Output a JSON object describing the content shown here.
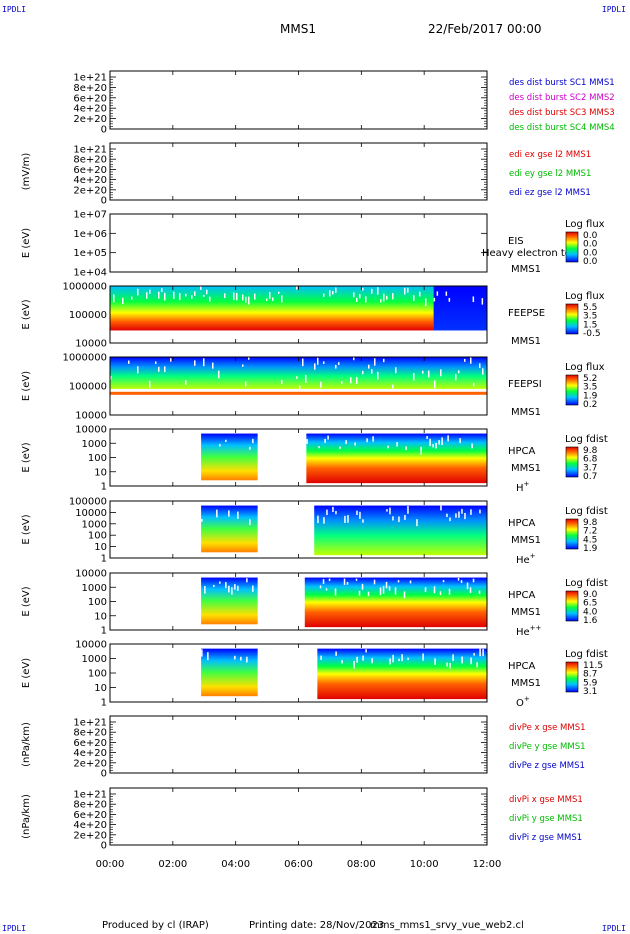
{
  "header": {
    "corner_tl": "IPDLI",
    "corner_tr": "IPDLI",
    "corner_bl": "IPDLI",
    "corner_br": "IPDLI",
    "mission": "MMS1",
    "date": "22/Feb/2017 00:00"
  },
  "footer": {
    "produced": "Produced by cl (IRAP)",
    "printed": "Printing date: 28/Nov/2023",
    "script": "mms_mms1_srvy_vue_web2.cl"
  },
  "colors": {
    "blue": "#0000cc",
    "magenta": "#cc00cc",
    "red": "#dd0000",
    "green": "#00bb00"
  },
  "chart_data": {
    "type": "heatmap",
    "time_axis": {
      "ticks": [
        "00:00",
        "02:00",
        "04:00",
        "06:00",
        "08:00",
        "10:00",
        "12:00"
      ],
      "range_hours": [
        0,
        12
      ]
    },
    "panels": [
      {
        "kind": "line",
        "ylabel": "",
        "yticks": [
          "1e+21",
          "8e+20",
          "6e+20",
          "4e+20",
          "2e+20",
          "0"
        ],
        "legend": [
          {
            "text": "des dist burst SC1 MMS1",
            "color": "#0000cc"
          },
          {
            "text": "des dist burst SC2 MMS2",
            "color": "#cc00cc"
          },
          {
            "text": "des dist burst SC3 MMS3",
            "color": "#dd0000"
          },
          {
            "text": "des dist burst SC4 MMS4",
            "color": "#00bb00"
          }
        ]
      },
      {
        "kind": "line",
        "ylabel": "(mV/m)",
        "yticks": [
          "1e+21",
          "8e+20",
          "6e+20",
          "4e+20",
          "2e+20",
          "0"
        ],
        "legend": [
          {
            "text": "edi ex gse l2 MMS1",
            "color": "#dd0000"
          },
          {
            "text": "edi ey gse l2 MMS1",
            "color": "#00bb00"
          },
          {
            "text": "edi ez gse l2 MMS1",
            "color": "#0000cc"
          }
        ]
      },
      {
        "kind": "spec",
        "ylabel": "E (eV)",
        "yticks": [
          "1e+07",
          "1e+06",
          "1e+05",
          "1e+04"
        ],
        "instrument": [
          "EIS",
          "MMS1"
        ],
        "overlay": "Heavy electron to",
        "cbar_title": "Log flux",
        "cbar_ticks": [
          "0.0",
          "0.0",
          "0.0",
          "0.0"
        ],
        "coverage": []
      },
      {
        "kind": "spec",
        "ylabel": "E (eV)",
        "yticks": [
          "1000000",
          "100000",
          "10000"
        ],
        "instrument": [
          "FEEPSE",
          "MMS1"
        ],
        "cbar_title": "Log flux",
        "cbar_ticks": [
          "5.5",
          "3.5",
          "1.5",
          "-0.5"
        ],
        "coverage": [
          [
            0,
            10.3
          ],
          [
            10.3,
            12
          ]
        ]
      },
      {
        "kind": "spec",
        "ylabel": "E (eV)",
        "yticks": [
          "1000000",
          "100000",
          "10000"
        ],
        "instrument": [
          "FEEPSI",
          "MMS1"
        ],
        "cbar_title": "Log flux",
        "cbar_ticks": [
          "5.2",
          "3.5",
          "1.9",
          "0.2"
        ],
        "coverage": [
          [
            0,
            12
          ]
        ]
      },
      {
        "kind": "spec",
        "ylabel": "E (eV)",
        "yticks": [
          "10000",
          "1000",
          "100",
          "10",
          "1"
        ],
        "instrument": [
          "HPCA",
          "MMS1"
        ],
        "species": "H",
        "species_sup": "+",
        "cbar_title": "Log fdist",
        "cbar_ticks": [
          "9.8",
          "6.8",
          "3.7",
          "0.7"
        ],
        "coverage": [
          [
            2.9,
            4.7
          ],
          [
            6.25,
            12
          ]
        ]
      },
      {
        "kind": "spec",
        "ylabel": "E (eV)",
        "yticks": [
          "100000",
          "10000",
          "1000",
          "100",
          "10",
          "1"
        ],
        "instrument": [
          "HPCA",
          "MMS1"
        ],
        "species": "He",
        "species_sup": "+",
        "cbar_title": "Log fdist",
        "cbar_ticks": [
          "9.8",
          "7.2",
          "4.5",
          "1.9"
        ],
        "coverage": [
          [
            2.9,
            4.7
          ],
          [
            6.5,
            12
          ]
        ]
      },
      {
        "kind": "spec",
        "ylabel": "E (eV)",
        "yticks": [
          "10000",
          "1000",
          "100",
          "10",
          "1"
        ],
        "instrument": [
          "HPCA",
          "MMS1"
        ],
        "species": "He",
        "species_sup": "++",
        "cbar_title": "Log fdist",
        "cbar_ticks": [
          "9.0",
          "6.5",
          "4.0",
          "1.6"
        ],
        "coverage": [
          [
            2.9,
            4.7
          ],
          [
            6.2,
            12
          ]
        ]
      },
      {
        "kind": "spec",
        "ylabel": "E (eV)",
        "yticks": [
          "10000",
          "1000",
          "100",
          "10",
          "1"
        ],
        "instrument": [
          "HPCA",
          "MMS1"
        ],
        "species": "O",
        "species_sup": "+",
        "cbar_title": "Log fdist",
        "cbar_ticks": [
          "11.5",
          "8.7",
          "5.9",
          "3.1"
        ],
        "coverage": [
          [
            2.9,
            4.7
          ],
          [
            6.6,
            12
          ]
        ]
      },
      {
        "kind": "line",
        "ylabel": "(nPa/km)",
        "yticks": [
          "1e+21",
          "8e+20",
          "6e+20",
          "4e+20",
          "2e+20",
          "0"
        ],
        "legend": [
          {
            "text": "divPe x gse MMS1",
            "color": "#dd0000"
          },
          {
            "text": "divPe y gse MMS1",
            "color": "#00bb00"
          },
          {
            "text": "divPe z gse MMS1",
            "color": "#0000cc"
          }
        ]
      },
      {
        "kind": "line",
        "ylabel": "(nPa/km)",
        "yticks": [
          "1e+21",
          "8e+20",
          "6e+20",
          "4e+20",
          "2e+20",
          "0"
        ],
        "legend": [
          {
            "text": "divPi x gse MMS1",
            "color": "#dd0000"
          },
          {
            "text": "divPi y gse MMS1",
            "color": "#00bb00"
          },
          {
            "text": "divPi z gse MMS1",
            "color": "#0000cc"
          }
        ]
      }
    ]
  }
}
